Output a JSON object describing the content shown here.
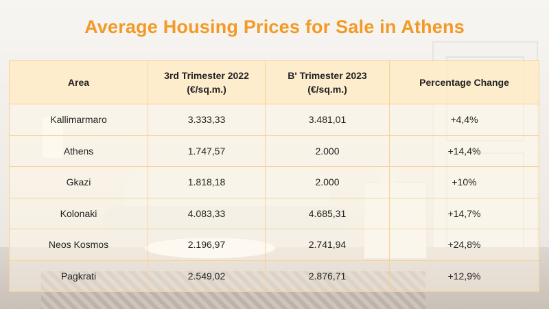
{
  "title": "Average Housing Prices for Sale in Athens",
  "accent_color": "#f29a26",
  "table": {
    "headers": [
      {
        "line1": "Area",
        "line2": ""
      },
      {
        "line1": "3rd Trimester 2022",
        "line2": "(€/sq.m.)"
      },
      {
        "line1": "B' Trimester 2023",
        "line2": "(€/sq.m.)"
      },
      {
        "line1": "Percentage Change",
        "line2": ""
      }
    ],
    "rows": [
      [
        "Kallimarmaro",
        "3.333,33",
        "3.481,01",
        "+4,4%"
      ],
      [
        "Athens",
        "1.747,57",
        "2.000",
        "+14,4%"
      ],
      [
        "Gkazi",
        "1.818,18",
        "2.000",
        "+10%"
      ],
      [
        "Kolonaki",
        "4.083,33",
        "4.685,31",
        "+14,7%"
      ],
      [
        "Neos Kosmos",
        "2.196,97",
        "2.741,94",
        "+24,8%"
      ],
      [
        "Pagkrati",
        "2.549,02",
        "2.876,71",
        "+12,9%"
      ]
    ]
  }
}
